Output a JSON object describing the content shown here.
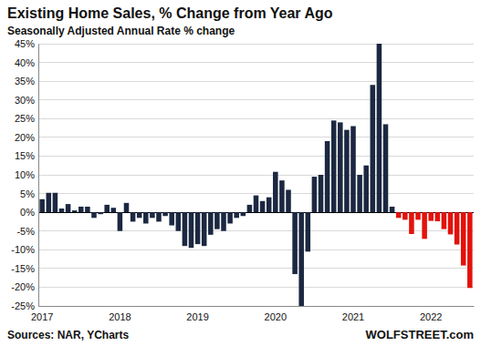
{
  "chart_data": {
    "type": "bar",
    "title": "Existing Home Sales, % Change from Year Ago",
    "subtitle": "Seasonally Adjusted Annual Rate % change",
    "source": "Sources: NAR, YCharts",
    "annotation": "WOLFSTREET.com",
    "categories": [
      "2017",
      null,
      null,
      null,
      null,
      null,
      null,
      null,
      null,
      null,
      null,
      null,
      "2018",
      null,
      null,
      null,
      null,
      null,
      null,
      null,
      null,
      null,
      null,
      null,
      "2019",
      null,
      null,
      null,
      null,
      null,
      null,
      null,
      null,
      null,
      null,
      null,
      "2020",
      null,
      null,
      null,
      null,
      null,
      null,
      null,
      null,
      null,
      null,
      null,
      "2021",
      null,
      null,
      null,
      null,
      null,
      null,
      null,
      null,
      null,
      null,
      null,
      "2022",
      null,
      null,
      null,
      null,
      null,
      null
    ],
    "values": [
      3.5,
      5.2,
      5.2,
      1.0,
      2.2,
      0.5,
      1.5,
      1.5,
      -1.5,
      -0.5,
      2.0,
      1.2,
      -5.0,
      2.5,
      -2.5,
      -1.5,
      -3.0,
      -1.5,
      -2.5,
      -1.0,
      -3.5,
      -5.0,
      -9.0,
      -9.5,
      -8.5,
      -9.0,
      -6.0,
      -4.5,
      -5.0,
      -3.0,
      -1.5,
      -1.0,
      2.0,
      4.5,
      3.0,
      4.0,
      10.8,
      8.5,
      6.0,
      -16.5,
      -25.0,
      -10.5,
      9.5,
      10.0,
      19.0,
      24.5,
      24.0,
      22.0,
      23.0,
      10.0,
      12.5,
      34.0,
      45.0,
      23.5,
      1.5,
      -1.5,
      -2.0,
      -5.8,
      -2.0,
      -7.1,
      -2.3,
      -2.4,
      -4.5,
      -5.9,
      -8.6,
      -14.2,
      -20.2
    ],
    "colors": [
      "#1c2841",
      "#1c2841",
      "#1c2841",
      "#1c2841",
      "#1c2841",
      "#1c2841",
      "#1c2841",
      "#1c2841",
      "#1c2841",
      "#1c2841",
      "#1c2841",
      "#1c2841",
      "#1c2841",
      "#1c2841",
      "#1c2841",
      "#1c2841",
      "#1c2841",
      "#1c2841",
      "#1c2841",
      "#1c2841",
      "#1c2841",
      "#1c2841",
      "#1c2841",
      "#1c2841",
      "#1c2841",
      "#1c2841",
      "#1c2841",
      "#1c2841",
      "#1c2841",
      "#1c2841",
      "#1c2841",
      "#1c2841",
      "#1c2841",
      "#1c2841",
      "#1c2841",
      "#1c2841",
      "#1c2841",
      "#1c2841",
      "#1c2841",
      "#1c2841",
      "#1c2841",
      "#1c2841",
      "#1c2841",
      "#1c2841",
      "#1c2841",
      "#1c2841",
      "#1c2841",
      "#1c2841",
      "#1c2841",
      "#1c2841",
      "#1c2841",
      "#1c2841",
      "#1c2841",
      "#1c2841",
      "#1c2841",
      "#e3120b",
      "#e3120b",
      "#e3120b",
      "#e3120b",
      "#e3120b",
      "#e3120b",
      "#e3120b",
      "#e3120b",
      "#e3120b",
      "#e3120b",
      "#e3120b",
      "#e3120b"
    ],
    "ylim": [
      -25,
      45
    ],
    "yticks": [
      {
        "value": -25,
        "label": "-25%"
      },
      {
        "value": -20,
        "label": "-20%"
      },
      {
        "value": -15,
        "label": "-15%"
      },
      {
        "value": -10,
        "label": "-10%"
      },
      {
        "value": -5,
        "label": "-5%"
      },
      {
        "value": 0,
        "label": "0%"
      },
      {
        "value": 5,
        "label": "5%"
      },
      {
        "value": 10,
        "label": "10%"
      },
      {
        "value": 15,
        "label": "15%"
      },
      {
        "value": 20,
        "label": "20%"
      },
      {
        "value": 25,
        "label": "25%"
      },
      {
        "value": 30,
        "label": "30%"
      },
      {
        "value": 35,
        "label": "35%"
      },
      {
        "value": 40,
        "label": "40%"
      },
      {
        "value": 45,
        "label": "45%"
      }
    ],
    "grid": true
  }
}
